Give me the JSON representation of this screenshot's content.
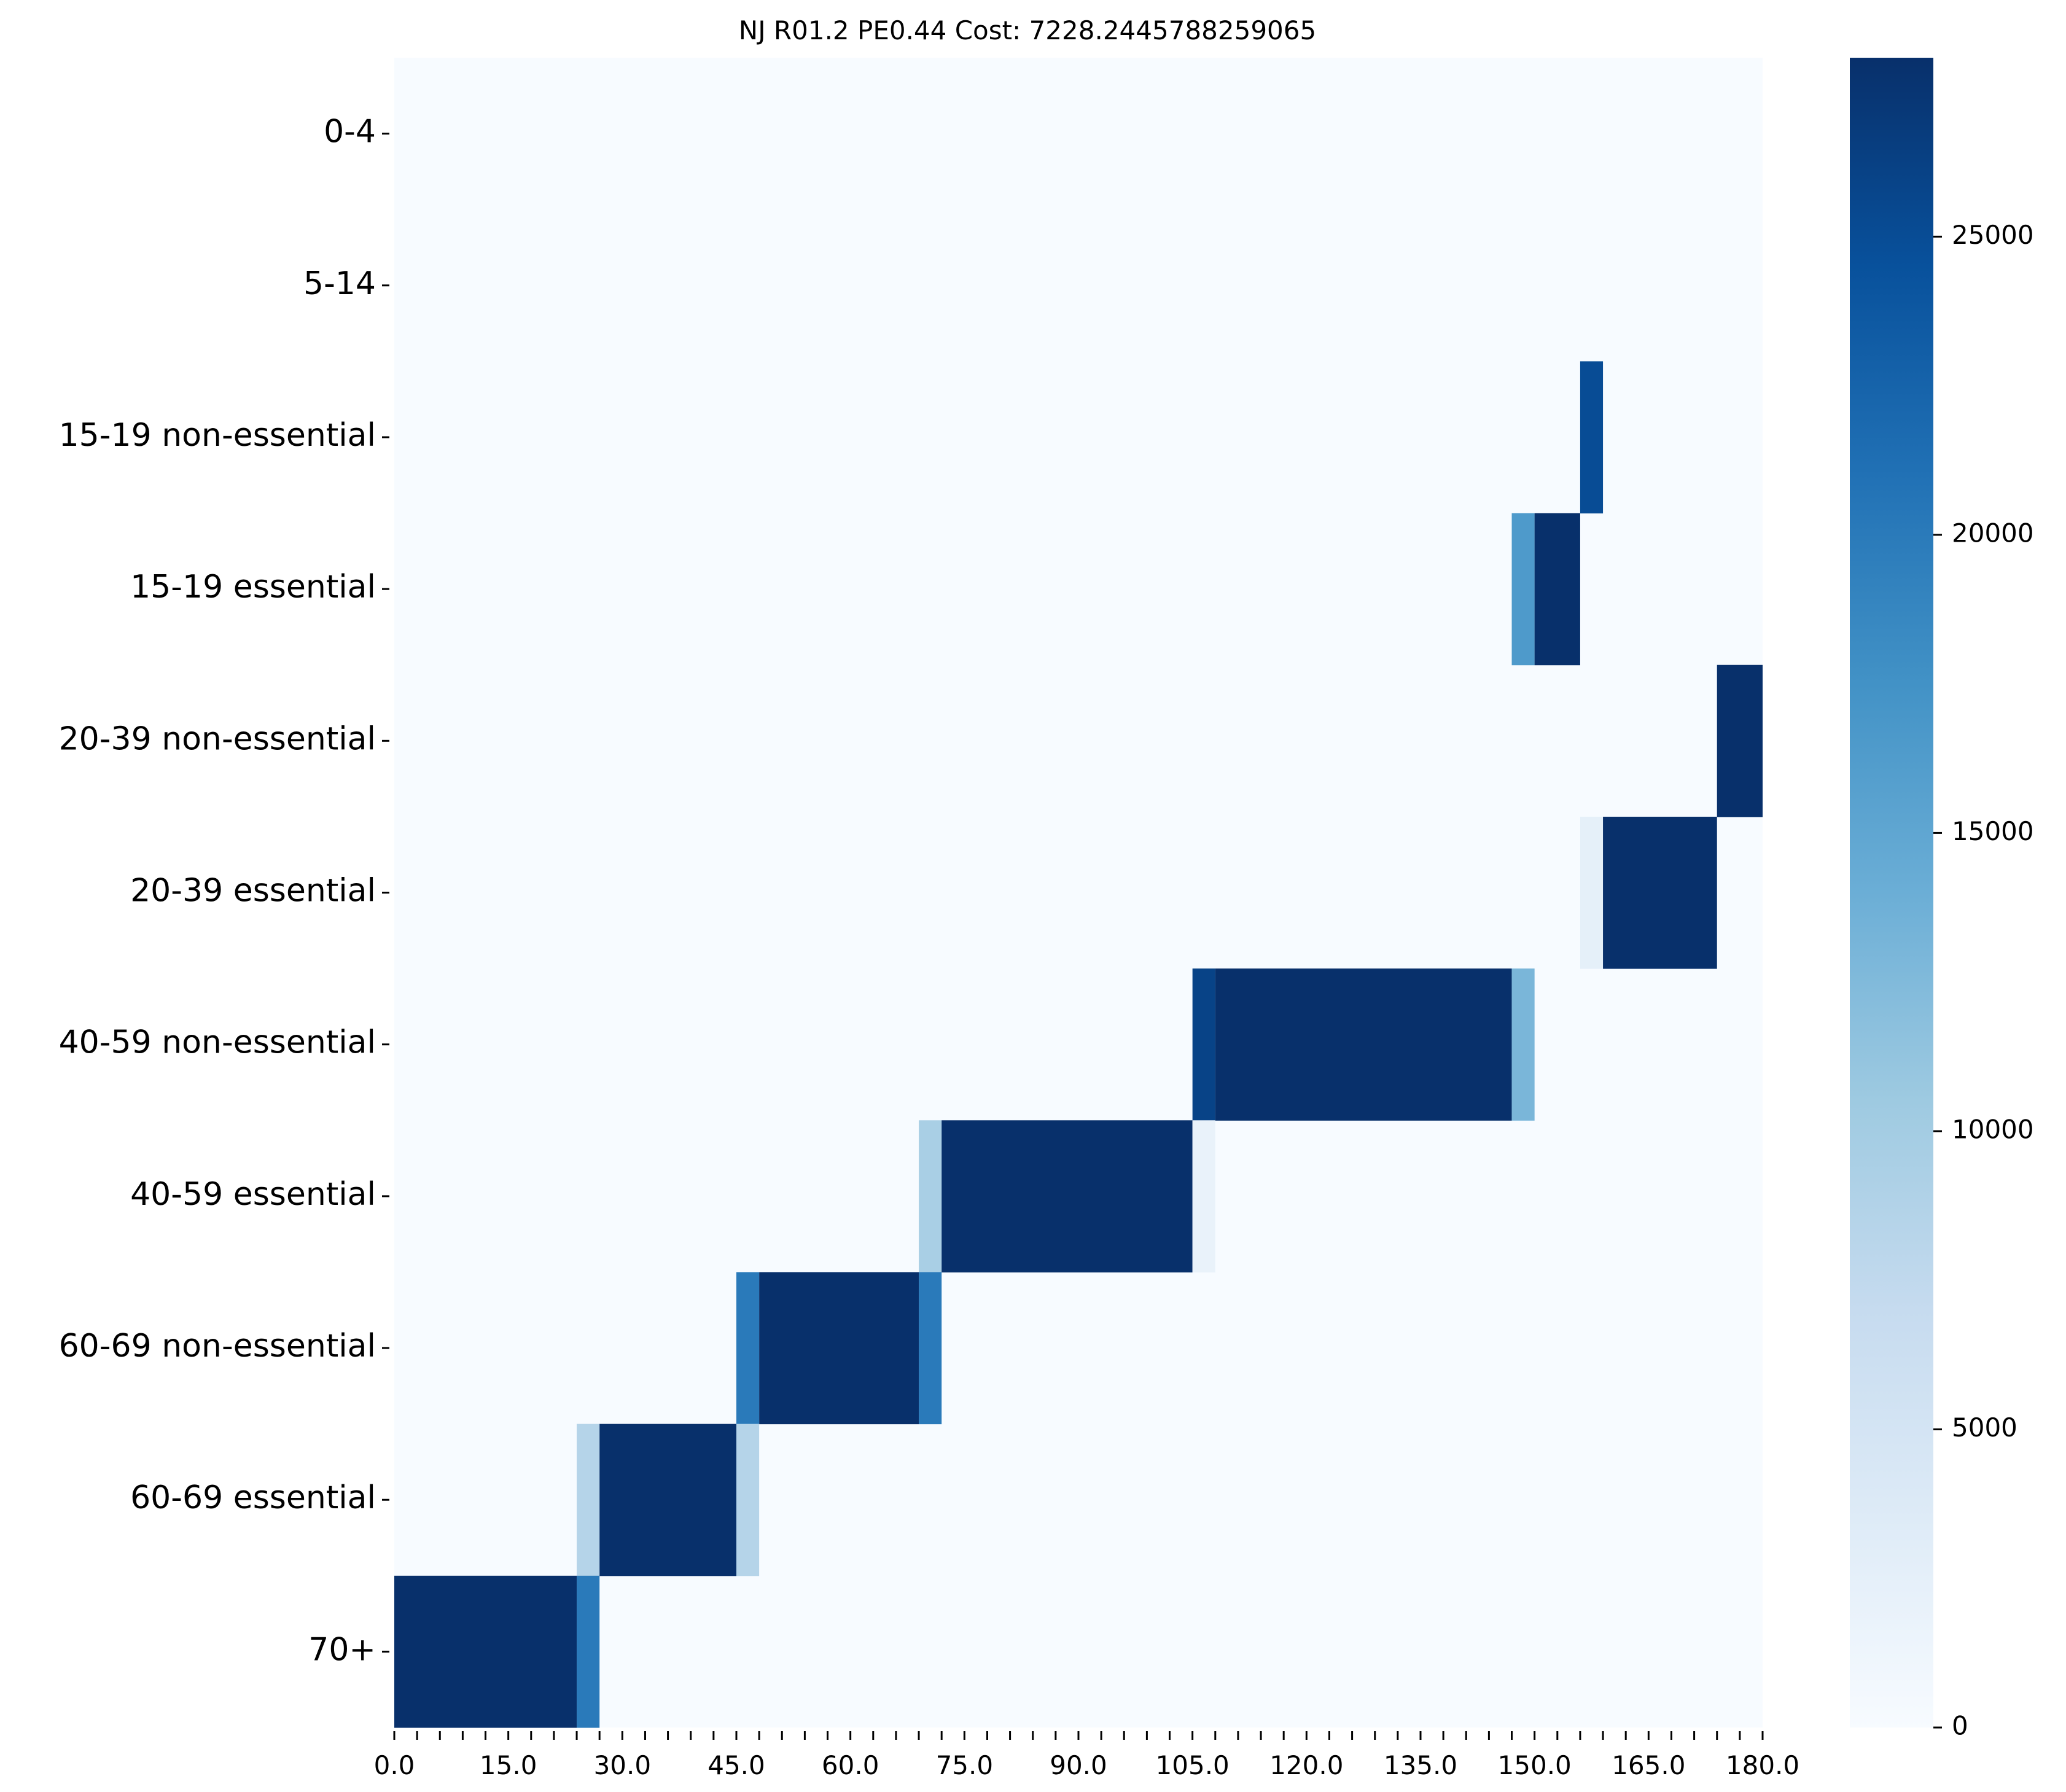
{
  "chart_data": {
    "type": "heatmap",
    "title": "NJ R01.2 PE0.44 Cost: 7228.2445788259065",
    "xlabel": "",
    "ylabel": "",
    "colormap": "Blues",
    "colors": {
      "low": "#f7fbff",
      "high": "#08306b"
    },
    "x_range": [
      0,
      180
    ],
    "x_bin_width": 3,
    "x_bins": 60,
    "x_ticks": [
      "0.0",
      "15.0",
      "30.0",
      "45.0",
      "60.0",
      "75.0",
      "90.0",
      "105.0",
      "120.0",
      "135.0",
      "150.0",
      "165.0",
      "180.0"
    ],
    "rows": [
      "0-4",
      "5-14",
      "15-19 non-essential",
      "15-19 essential",
      "20-39 non-essential",
      "20-39 essential",
      "40-59 non-essential",
      "40-59 essential",
      "60-69 non-essential",
      "60-69 essential",
      "70+"
    ],
    "color_range": [
      0,
      28000
    ],
    "colorbar_ticks": [
      0,
      5000,
      10000,
      15000,
      20000,
      25000
    ],
    "colorbar_tick_labels": [
      "0",
      "5000",
      "10000",
      "15000",
      "20000",
      "25000"
    ],
    "background_value": 0,
    "cells": [
      {
        "row": "15-19 non-essential",
        "x_start": 156,
        "x_end": 159,
        "value": 25000
      },
      {
        "row": "15-19 essential",
        "x_start": 147,
        "x_end": 150,
        "value": 16500
      },
      {
        "row": "15-19 essential",
        "x_start": 150,
        "x_end": 156,
        "value": 28000
      },
      {
        "row": "20-39 non-essential",
        "x_start": 174,
        "x_end": 180,
        "value": 28000
      },
      {
        "row": "20-39 essential",
        "x_start": 156,
        "x_end": 159,
        "value": 2500
      },
      {
        "row": "20-39 essential",
        "x_start": 159,
        "x_end": 174,
        "value": 28000
      },
      {
        "row": "40-59 non-essential",
        "x_start": 105,
        "x_end": 108,
        "value": 26000
      },
      {
        "row": "40-59 non-essential",
        "x_start": 108,
        "x_end": 147,
        "value": 28000
      },
      {
        "row": "40-59 non-essential",
        "x_start": 147,
        "x_end": 150,
        "value": 13000
      },
      {
        "row": "40-59 essential",
        "x_start": 69,
        "x_end": 72,
        "value": 9500
      },
      {
        "row": "40-59 essential",
        "x_start": 72,
        "x_end": 105,
        "value": 28000
      },
      {
        "row": "40-59 essential",
        "x_start": 105,
        "x_end": 108,
        "value": 2000
      },
      {
        "row": "60-69 non-essential",
        "x_start": 45,
        "x_end": 48,
        "value": 20000
      },
      {
        "row": "60-69 non-essential",
        "x_start": 48,
        "x_end": 69,
        "value": 28000
      },
      {
        "row": "60-69 non-essential",
        "x_start": 69,
        "x_end": 72,
        "value": 20000
      },
      {
        "row": "60-69 essential",
        "x_start": 24,
        "x_end": 27,
        "value": 8500
      },
      {
        "row": "60-69 essential",
        "x_start": 27,
        "x_end": 45,
        "value": 28000
      },
      {
        "row": "60-69 essential",
        "x_start": 45,
        "x_end": 48,
        "value": 8500
      },
      {
        "row": "70+",
        "x_start": 0,
        "x_end": 24,
        "value": 28000
      },
      {
        "row": "70+",
        "x_start": 24,
        "x_end": 27,
        "value": 20000
      }
    ]
  }
}
